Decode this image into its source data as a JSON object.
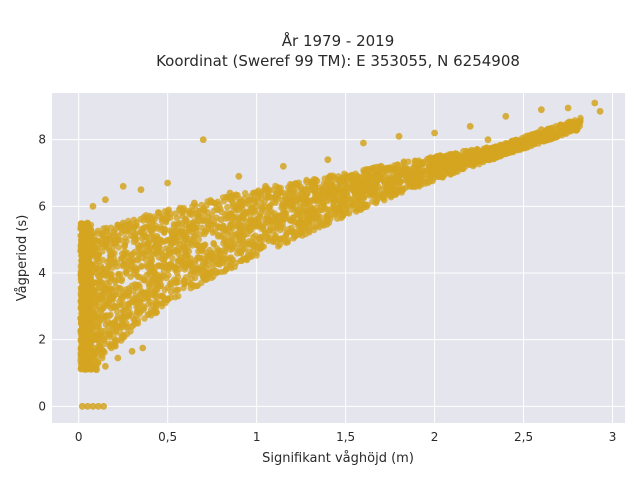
{
  "chart_data": {
    "type": "scatter",
    "title_line1": "År 1979 - 2019",
    "title_line2": "Koordinat (Sweref 99 TM): E 353055, N 6254908",
    "xlabel": "Signifikant våghöjd (m)",
    "ylabel": "Vågperiod (s)",
    "xlim": [
      -0.15,
      3.07
    ],
    "ylim": [
      -0.5,
      9.4
    ],
    "x_ticks": [
      0,
      0.5,
      1,
      1.5,
      2,
      2.5,
      3
    ],
    "x_tick_labels": [
      "0",
      "0,5",
      "1",
      "1,5",
      "2",
      "2,5",
      "3"
    ],
    "y_ticks": [
      0,
      2,
      4,
      6,
      8
    ],
    "y_tick_labels": [
      "0",
      "2",
      "4",
      "6",
      "8"
    ],
    "grid": true,
    "legend": "none",
    "marker_color": "#D4A521",
    "background_color": "#E5E5EE",
    "points": [
      {
        "x": 0.02,
        "y": 0
      },
      {
        "x": 0.05,
        "y": 0
      },
      {
        "x": 0.08,
        "y": 0
      },
      {
        "x": 0.11,
        "y": 0
      },
      {
        "x": 0.14,
        "y": 0
      },
      {
        "x": 0.02,
        "y": 1.4
      },
      {
        "x": 0.05,
        "y": 1.2
      },
      {
        "x": 0.1,
        "y": 1.1
      },
      {
        "x": 0.15,
        "y": 1.2
      },
      {
        "x": 0.22,
        "y": 1.45
      },
      {
        "x": 0.3,
        "y": 1.65
      },
      {
        "x": 0.36,
        "y": 1.75
      },
      {
        "x": 0.02,
        "y": 2.5
      },
      {
        "x": 0.03,
        "y": 3.5
      },
      {
        "x": 0.04,
        "y": 4.5
      },
      {
        "x": 0.05,
        "y": 5.5
      },
      {
        "x": 0.08,
        "y": 6.0
      },
      {
        "x": 0.15,
        "y": 6.2
      },
      {
        "x": 0.25,
        "y": 6.6
      },
      {
        "x": 0.35,
        "y": 6.5
      },
      {
        "x": 0.5,
        "y": 6.7
      },
      {
        "x": 0.7,
        "y": 8.0
      },
      {
        "x": 0.9,
        "y": 6.9
      },
      {
        "x": 1.15,
        "y": 7.2
      },
      {
        "x": 1.4,
        "y": 7.4
      },
      {
        "x": 1.6,
        "y": 7.9
      },
      {
        "x": 1.8,
        "y": 8.1
      },
      {
        "x": 2.0,
        "y": 8.2
      },
      {
        "x": 2.2,
        "y": 8.4
      },
      {
        "x": 2.4,
        "y": 8.7
      },
      {
        "x": 2.6,
        "y": 8.9
      },
      {
        "x": 2.75,
        "y": 8.95
      },
      {
        "x": 2.9,
        "y": 9.1
      },
      {
        "x": 2.93,
        "y": 8.85
      },
      {
        "x": 2.8,
        "y": 8.3
      },
      {
        "x": 2.5,
        "y": 7.9
      },
      {
        "x": 2.2,
        "y": 7.5
      },
      {
        "x": 2.0,
        "y": 7.2
      },
      {
        "x": 1.8,
        "y": 6.9
      },
      {
        "x": 1.5,
        "y": 6.4
      },
      {
        "x": 1.3,
        "y": 6.0
      },
      {
        "x": 1.1,
        "y": 5.6
      },
      {
        "x": 0.9,
        "y": 5.0
      },
      {
        "x": 0.7,
        "y": 4.3
      },
      {
        "x": 0.5,
        "y": 3.2
      },
      {
        "x": 0.3,
        "y": 2.4
      },
      {
        "x": 0.12,
        "y": 1.8
      },
      {
        "x": 0.2,
        "y": 3.0
      },
      {
        "x": 0.4,
        "y": 4.2
      },
      {
        "x": 0.6,
        "y": 5.0
      },
      {
        "x": 0.8,
        "y": 5.6
      },
      {
        "x": 1.0,
        "y": 6.0
      },
      {
        "x": 1.2,
        "y": 6.4
      },
      {
        "x": 1.45,
        "y": 6.8
      },
      {
        "x": 1.7,
        "y": 7.2
      },
      {
        "x": 2.3,
        "y": 8.0
      },
      {
        "x": 2.6,
        "y": 8.3
      },
      {
        "x": 0.1,
        "y": 4.0
      },
      {
        "x": 0.15,
        "y": 5.0
      },
      {
        "x": 0.25,
        "y": 5.5
      },
      {
        "x": 0.45,
        "y": 5.8
      },
      {
        "x": 0.65,
        "y": 6.1
      },
      {
        "x": 0.85,
        "y": 6.4
      },
      {
        "x": 1.05,
        "y": 6.6
      }
    ]
  }
}
